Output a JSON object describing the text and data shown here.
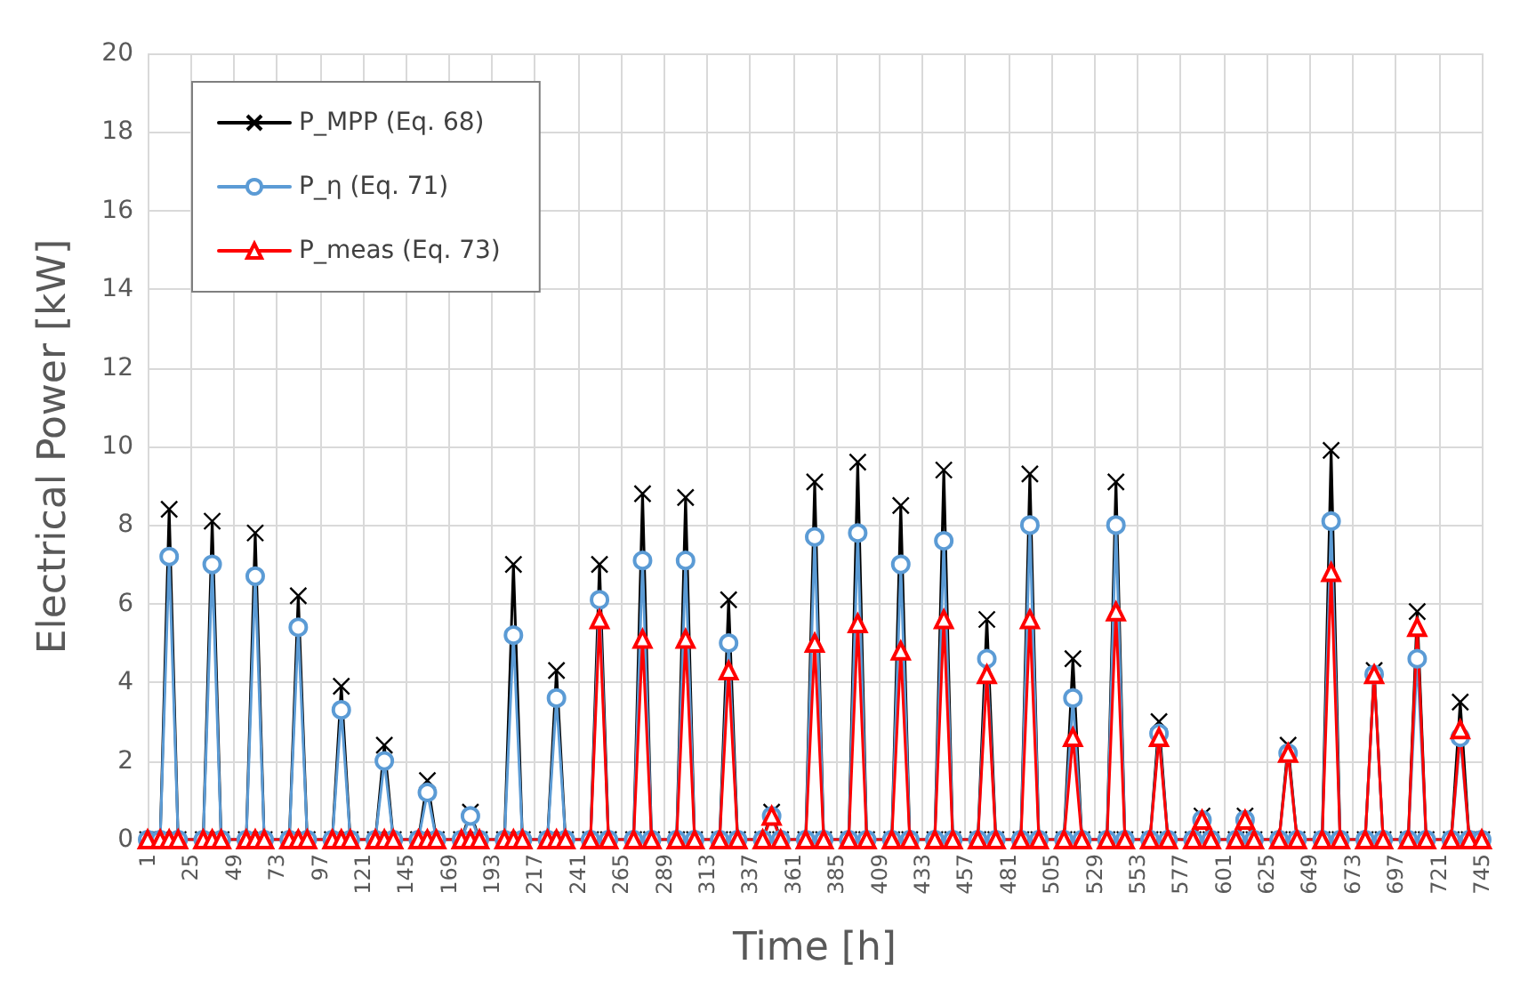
{
  "chart_data": {
    "type": "line",
    "xlabel": "Time [h]",
    "ylabel": "Electrical Power [kW]",
    "x": [
      1,
      8,
      13,
      18,
      32,
      37,
      42,
      56,
      61,
      66,
      80,
      85,
      90,
      104,
      109,
      114,
      128,
      133,
      138,
      152,
      157,
      162,
      176,
      181,
      186,
      200,
      205,
      210,
      224,
      229,
      234,
      248,
      253,
      258,
      272,
      277,
      282,
      296,
      301,
      306,
      320,
      325,
      330,
      344,
      349,
      354,
      368,
      373,
      378,
      392,
      397,
      402,
      416,
      421,
      426,
      440,
      445,
      450,
      464,
      469,
      474,
      488,
      493,
      498,
      512,
      517,
      522,
      536,
      541,
      546,
      560,
      565,
      570,
      584,
      589,
      594,
      608,
      613,
      618,
      632,
      637,
      642,
      656,
      661,
      666,
      680,
      685,
      690,
      704,
      709,
      714,
      728,
      733,
      738,
      745
    ],
    "series": [
      {
        "name": "P_MPP (Eq. 68)",
        "color": "#000000",
        "marker": "cross",
        "values": [
          0,
          0,
          8.4,
          0,
          0,
          8.1,
          0,
          0,
          7.8,
          0,
          0,
          6.2,
          0,
          0,
          3.9,
          0,
          0,
          2.4,
          0,
          0,
          1.5,
          0,
          0,
          0.7,
          0,
          0,
          7.0,
          0,
          0,
          4.3,
          0,
          0,
          7.0,
          0,
          0,
          8.8,
          0,
          0,
          8.7,
          0,
          0,
          6.1,
          0,
          0,
          0.7,
          0,
          0,
          9.1,
          0,
          0,
          9.6,
          0,
          0,
          8.5,
          0,
          0,
          9.4,
          0,
          0,
          5.6,
          0,
          0,
          9.3,
          0,
          0,
          4.6,
          0,
          0,
          9.1,
          0,
          0,
          3.0,
          0,
          0,
          0.6,
          0,
          0,
          0.6,
          0,
          0,
          2.4,
          0,
          0,
          9.9,
          0,
          0,
          4.3,
          0,
          0,
          5.8,
          0,
          0,
          3.5,
          0,
          0
        ]
      },
      {
        "name": "P_η (Eq. 71)",
        "color": "#5b9bd5",
        "marker": "circle",
        "values": [
          0,
          0,
          7.2,
          0,
          0,
          7.0,
          0,
          0,
          6.7,
          0,
          0,
          5.4,
          0,
          0,
          3.3,
          0,
          0,
          2.0,
          0,
          0,
          1.2,
          0,
          0,
          0.6,
          0,
          0,
          5.2,
          0,
          0,
          3.6,
          0,
          0,
          6.1,
          0,
          0,
          7.1,
          0,
          0,
          7.1,
          0,
          0,
          5.0,
          0,
          0,
          0.6,
          0,
          0,
          7.7,
          0,
          0,
          7.8,
          0,
          0,
          7.0,
          0,
          0,
          7.6,
          0,
          0,
          4.6,
          0,
          0,
          8.0,
          0,
          0,
          3.6,
          0,
          0,
          8.0,
          0,
          0,
          2.7,
          0,
          0,
          0.5,
          0,
          0,
          0.5,
          0,
          0,
          2.2,
          0,
          0,
          8.1,
          0,
          0,
          4.2,
          0,
          0,
          4.6,
          0,
          0,
          2.6,
          0,
          0
        ]
      },
      {
        "name": "P_meas (Eq. 73)",
        "color": "#ff0000",
        "marker": "triangle",
        "values": [
          0,
          0,
          0,
          0,
          0,
          0,
          0,
          0,
          0,
          0,
          0,
          0,
          0,
          0,
          0,
          0,
          0,
          0,
          0,
          0,
          0,
          0,
          0,
          0,
          0,
          0,
          0,
          0,
          0,
          0,
          0,
          0,
          5.6,
          0,
          0,
          5.1,
          0,
          0,
          5.1,
          0,
          0,
          4.3,
          0,
          0,
          0.6,
          0,
          0,
          5.0,
          0,
          0,
          5.5,
          0,
          0,
          4.8,
          0,
          0,
          5.6,
          0,
          0,
          4.2,
          0,
          0,
          5.6,
          0,
          0,
          2.6,
          0,
          0,
          5.8,
          0,
          0,
          2.6,
          0,
          0,
          0.5,
          0,
          0,
          0.5,
          0,
          0,
          2.2,
          0,
          0,
          6.8,
          0,
          0,
          4.2,
          0,
          0,
          5.4,
          0,
          0,
          2.8,
          0,
          0
        ]
      }
    ],
    "xlim": [
      1,
      745
    ],
    "xticks": [
      1,
      25,
      49,
      73,
      97,
      121,
      145,
      169,
      193,
      217,
      241,
      265,
      289,
      313,
      337,
      361,
      385,
      409,
      433,
      457,
      481,
      505,
      529,
      553,
      577,
      601,
      625,
      649,
      673,
      697,
      721,
      745
    ],
    "ylim": [
      0,
      20
    ],
    "yticks": [
      0,
      2,
      4,
      6,
      8,
      10,
      12,
      14,
      16,
      18,
      20
    ],
    "grid": true,
    "legend": "top left",
    "line_style": "solid"
  }
}
